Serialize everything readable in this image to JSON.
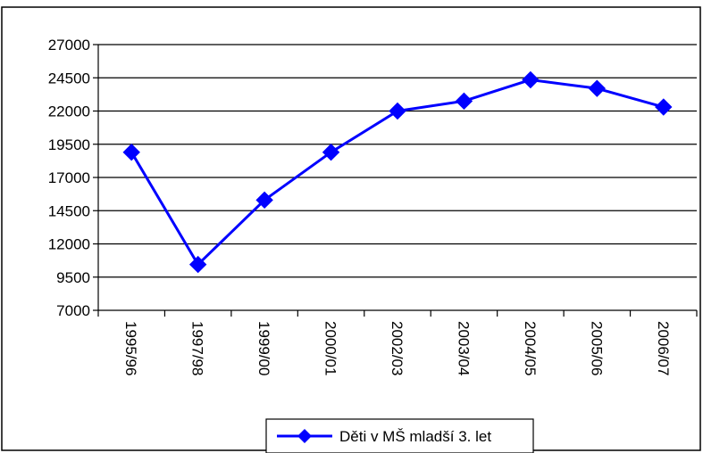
{
  "chart_data": {
    "type": "line",
    "title": "",
    "xlabel": "",
    "ylabel": "",
    "categories": [
      "1995/96",
      "1997/98",
      "1999/00",
      "2000/01",
      "2002/03",
      "2003/04",
      "2004/05",
      "2005/06",
      "2006/07"
    ],
    "series": [
      {
        "name": "Děti v MŠ mladší 3. let",
        "values": [
          18900,
          10450,
          15300,
          18900,
          22000,
          22750,
          24350,
          23700,
          22300
        ],
        "color": "#0000FF",
        "marker": "diamond"
      }
    ],
    "ylim": [
      7000,
      27000
    ],
    "yticks": [
      7000,
      9500,
      12000,
      14500,
      17000,
      19500,
      22000,
      24500,
      27000
    ],
    "grid": "horizontal",
    "legend": "bottom"
  }
}
